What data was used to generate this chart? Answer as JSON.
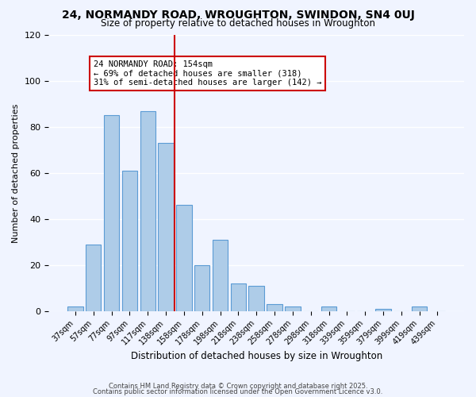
{
  "title": "24, NORMANDY ROAD, WROUGHTON, SWINDON, SN4 0UJ",
  "subtitle": "Size of property relative to detached houses in Wroughton",
  "xlabel": "Distribution of detached houses by size in Wroughton",
  "ylabel": "Number of detached properties",
  "bin_labels": [
    "37sqm",
    "57sqm",
    "77sqm",
    "97sqm",
    "117sqm",
    "138sqm",
    "158sqm",
    "178sqm",
    "198sqm",
    "218sqm",
    "238sqm",
    "258sqm",
    "278sqm",
    "298sqm",
    "318sqm",
    "339sqm",
    "359sqm",
    "379sqm",
    "399sqm",
    "419sqm",
    "439sqm"
  ],
  "bar_values": [
    2,
    29,
    85,
    61,
    87,
    73,
    46,
    20,
    31,
    12,
    11,
    3,
    2,
    0,
    2,
    0,
    0,
    1,
    0,
    2,
    0
  ],
  "bar_color": "#aecce8",
  "bar_edge_color": "#5b9bd5",
  "vline_x": 5.5,
  "vline_color": "#cc0000",
  "ylim": [
    0,
    120
  ],
  "yticks": [
    0,
    20,
    40,
    60,
    80,
    100,
    120
  ],
  "annotation_title": "24 NORMANDY ROAD: 154sqm",
  "annotation_line1": "← 69% of detached houses are smaller (318)",
  "annotation_line2": "31% of semi-detached houses are larger (142) →",
  "annotation_box_color": "#cc0000",
  "footer1": "Contains HM Land Registry data © Crown copyright and database right 2025.",
  "footer2": "Contains public sector information licensed under the Open Government Licence v3.0.",
  "bg_color": "#f0f4ff"
}
